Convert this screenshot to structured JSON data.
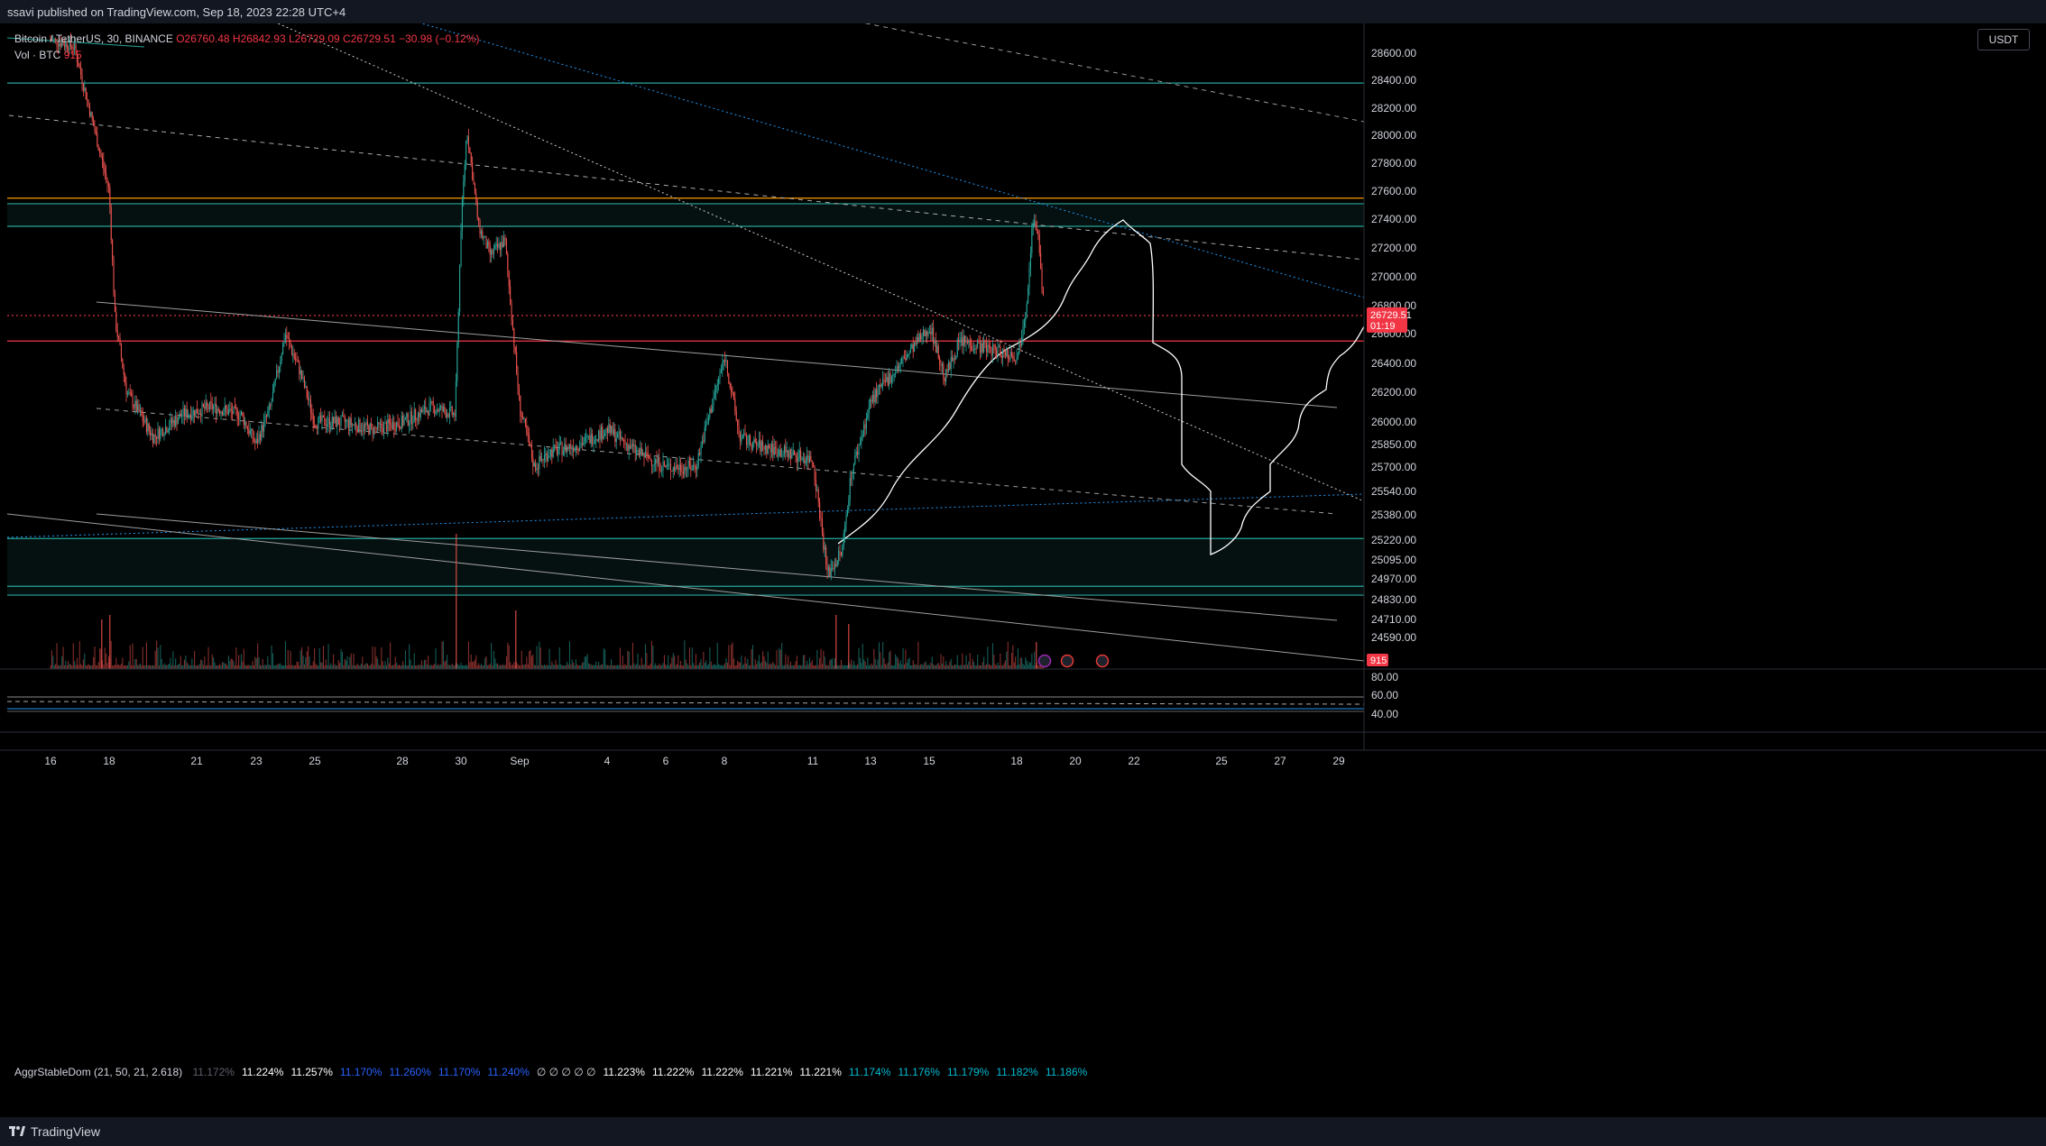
{
  "header": {
    "published": "ssavi published on TradingView.com, Sep 18, 2023 22:28 UTC+4"
  },
  "legend": {
    "symbol": "Bitcoin / TetherUS, 30, BINANCE",
    "ohlc": "O26760.48  H26842.93  L26729.09  C26729.51  −30.98 (−0.12%)",
    "volume_label": "Vol · BTC",
    "volume_value": "915"
  },
  "currency_button": "USDT",
  "footer": {
    "brand": "TradingView"
  },
  "colors": {
    "up": "#26a69a",
    "down": "#ef5350",
    "orange": "#ff9800",
    "red_line": "#f23645",
    "teal_line": "#26a69a",
    "blue_line": "#2962ff"
  },
  "indicator": {
    "title": "AggrStableDom (21, 50, 21, 2.618)",
    "values": [
      {
        "text": "11.172%",
        "color": "#5d606b"
      },
      {
        "text": "11.224%",
        "color": "#ffffff"
      },
      {
        "text": "11.257%",
        "color": "#ffffff"
      },
      {
        "text": "11.170%",
        "color": "#2962ff"
      },
      {
        "text": "11.260%",
        "color": "#2962ff"
      },
      {
        "text": "11.170%",
        "color": "#2962ff"
      },
      {
        "text": "11.240%",
        "color": "#2962ff"
      },
      {
        "text": "∅ ∅ ∅ ∅ ∅",
        "color": "#d1d4dc"
      },
      {
        "text": "11.223%",
        "color": "#ffffff"
      },
      {
        "text": "11.222%",
        "color": "#ffffff"
      },
      {
        "text": "11.222%",
        "color": "#ffffff"
      },
      {
        "text": "11.221%",
        "color": "#ffffff"
      },
      {
        "text": "11.221%",
        "color": "#ffffff"
      },
      {
        "text": "11.174%",
        "color": "#00bcd4"
      },
      {
        "text": "11.176%",
        "color": "#00bcd4"
      },
      {
        "text": "11.179%",
        "color": "#00bcd4"
      },
      {
        "text": "11.182%",
        "color": "#00bcd4"
      },
      {
        "text": "11.186%",
        "color": "#00bcd4"
      }
    ],
    "axis_ticks": [
      "80.00",
      "60.00",
      "40.00"
    ]
  },
  "chart_data": {
    "type": "candlestick",
    "symbol": "BTCUSDT",
    "interval": "30",
    "price_ticks": [
      28600,
      28400,
      28200,
      28000,
      27800,
      27600,
      27400,
      27200,
      27000,
      26800,
      26600,
      26400,
      26200,
      26000,
      25850,
      25700,
      25540,
      25380,
      25220,
      25095,
      24970,
      24830,
      24710,
      24590
    ],
    "price_tick_labels": [
      "28600.00",
      "28400.00",
      "28200.00",
      "28000.00",
      "27800.00",
      "27600.00",
      "27400.00",
      "27200.00",
      "27000.00",
      "26800.00",
      "26600.00",
      "26400.00",
      "26200.00",
      "26000.00",
      "25850.00",
      "25700.00",
      "25540.00",
      "25380.00",
      "25220.00",
      "25095.00",
      "24970.00",
      "24830.00",
      "24710.00",
      "24590.00"
    ],
    "last_price_label": "26729.51",
    "countdown_label": "01:19",
    "volume_label": "915",
    "x_tick_labels": [
      "16",
      "18",
      "21",
      "23",
      "25",
      "28",
      "30",
      "Sep",
      "4",
      "6",
      "8",
      "11",
      "13",
      "15",
      "18",
      "20",
      "22",
      "25",
      "27",
      "29"
    ],
    "price_path": [
      [
        "16",
        28700
      ],
      [
        "16.8",
        28650
      ],
      [
        "17.2",
        28300
      ],
      [
        "18",
        27600
      ],
      [
        "18.2",
        26700
      ],
      [
        "18.6",
        26200
      ],
      [
        "19.5",
        25900
      ],
      [
        "20.5",
        26050
      ],
      [
        "21.5",
        26100
      ],
      [
        "22.5",
        26050
      ],
      [
        "23",
        25850
      ],
      [
        "23.5",
        26100
      ],
      [
        "24",
        26600
      ],
      [
        "24.5",
        26350
      ],
      [
        "25",
        26000
      ],
      [
        "26",
        26000
      ],
      [
        "27",
        25950
      ],
      [
        "28",
        26000
      ],
      [
        "29",
        26100
      ],
      [
        "29.8",
        26050
      ],
      [
        "30",
        27350
      ],
      [
        "30.2",
        28050
      ],
      [
        "30.6",
        27350
      ],
      [
        "31",
        27150
      ],
      [
        "31.5",
        27250
      ],
      [
        "Sep 1",
        26100
      ],
      [
        "Sep 1.5",
        25700
      ],
      [
        "Sep 2",
        25800
      ],
      [
        "Sep 3",
        25850
      ],
      [
        "Sep 4",
        25950
      ],
      [
        "Sep 5",
        25800
      ],
      [
        "Sep 6",
        25700
      ],
      [
        "Sep 7",
        25700
      ],
      [
        "Sep 8",
        26450
      ],
      [
        "Sep 8.5",
        25900
      ],
      [
        "Sep 9",
        25850
      ],
      [
        "Sep 10",
        25800
      ],
      [
        "Sep 11",
        25750
      ],
      [
        "Sep 11.5",
        25000
      ],
      [
        "Sep 12",
        25150
      ],
      [
        "Sep 12.3",
        25650
      ],
      [
        "Sep 13",
        26150
      ],
      [
        "Sep 14",
        26400
      ],
      [
        "Sep 15",
        26650
      ],
      [
        "Sep 15.5",
        26300
      ],
      [
        "Sep 16",
        26550
      ],
      [
        "Sep 17",
        26500
      ],
      [
        "Sep 18",
        26450
      ],
      [
        "Sep 18.3",
        26850
      ],
      [
        "Sep 18.5",
        27400
      ],
      [
        "Sep 18.7",
        27250
      ],
      [
        "Sep 18.9",
        26730
      ]
    ],
    "horizontal_levels": [
      {
        "price": 28380,
        "color": "teal",
        "style": "solid"
      },
      {
        "price": 27550,
        "color": "orange",
        "style": "solid"
      },
      {
        "price": 27510,
        "color": "teal",
        "style": "solid"
      },
      {
        "price": 27350,
        "color": "teal",
        "style": "solid"
      },
      {
        "price": 26729.51,
        "color": "red",
        "style": "dotted"
      },
      {
        "price": 26550,
        "color": "red",
        "style": "solid"
      },
      {
        "price": 25230,
        "color": "teal",
        "style": "solid"
      },
      {
        "price": 24920,
        "color": "teal",
        "style": "solid"
      },
      {
        "price": 24860,
        "color": "teal",
        "style": "solid"
      }
    ],
    "zones": [
      {
        "from": 27350,
        "to": 27510
      },
      {
        "from": 24860,
        "to": 25230
      }
    ]
  }
}
